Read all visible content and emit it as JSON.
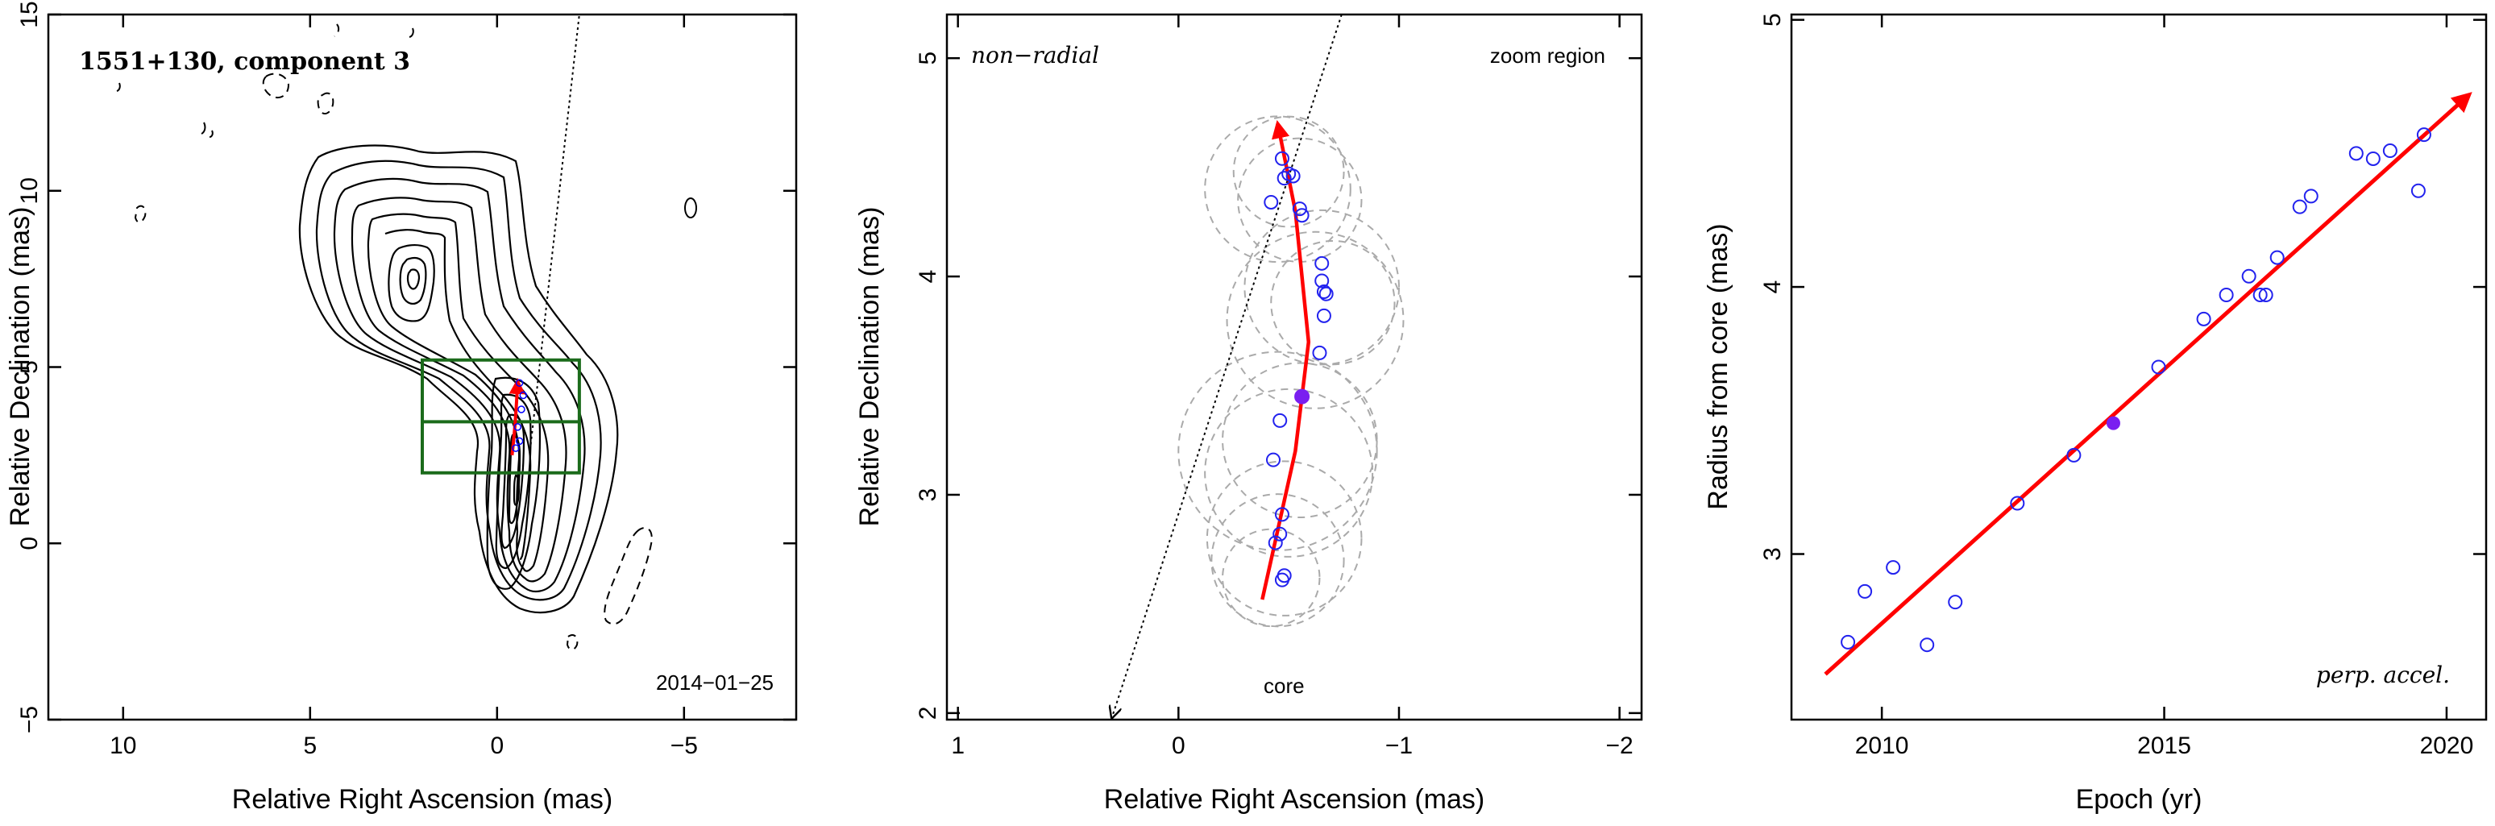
{
  "chart_data": [
    {
      "type": "scatter",
      "panel": "contour-map",
      "title": "1551+130, component 3",
      "date_label": "2014−01−25",
      "xlabel": "Relative Right Ascension (mas)",
      "ylabel": "Relative Declination (mas)",
      "xlim": [
        12,
        -8
      ],
      "ylim": [
        -5,
        15
      ],
      "x_ticks": [
        {
          "v": 10,
          "label": "10"
        },
        {
          "v": 5,
          "label": "5"
        },
        {
          "v": 0,
          "label": "0"
        },
        {
          "v": -5,
          "label": "−5"
        }
      ],
      "y_ticks": [
        {
          "v": -5,
          "label": "−5"
        },
        {
          "v": 0,
          "label": "0"
        },
        {
          "v": 5,
          "label": "5"
        },
        {
          "v": 10,
          "label": "10"
        },
        {
          "v": 15,
          "label": "15"
        }
      ],
      "zoom_box": {
        "x": [
          2.0,
          -2.2
        ],
        "y": [
          2.0,
          5.2
        ],
        "divider_y": 3.45
      },
      "jet_direction_line": [
        [
          -0.9,
          2.8
        ],
        [
          -2.2,
          15.0
        ]
      ],
      "path_arrow": [
        [
          -0.4,
          2.5
        ],
        [
          -0.5,
          3.4
        ],
        [
          -0.55,
          4.6
        ]
      ],
      "component_points": [
        [
          -0.6,
          4.55
        ],
        [
          -0.7,
          4.2
        ],
        [
          -0.65,
          3.8
        ],
        [
          -0.55,
          3.3
        ],
        [
          -0.6,
          2.9
        ],
        [
          -0.5,
          2.7
        ]
      ],
      "contour_color": "#000000",
      "box_color": "#1b6b1b",
      "arrow_color": "#ff0000",
      "point_color": "#0000ff"
    },
    {
      "type": "scatter",
      "panel": "zoom",
      "label_left": "non−radial",
      "label_right": "zoom region",
      "core_label": "core",
      "xlabel": "Relative Right Ascension (mas)",
      "ylabel": "Relative Declination (mas)",
      "xlim": [
        1.05,
        -2.1
      ],
      "ylim": [
        1.97,
        5.2
      ],
      "x_ticks": [
        {
          "v": 1,
          "label": "1"
        },
        {
          "v": 0,
          "label": "0"
        },
        {
          "v": -1,
          "label": "−1"
        },
        {
          "v": -2,
          "label": "−2"
        }
      ],
      "y_ticks": [
        {
          "v": 2,
          "label": "2"
        },
        {
          "v": 3,
          "label": "3"
        },
        {
          "v": 4,
          "label": "4"
        },
        {
          "v": 5,
          "label": "5"
        }
      ],
      "points": [
        [
          -0.47,
          4.54
        ],
        [
          -0.5,
          4.47
        ],
        [
          -0.48,
          4.45
        ],
        [
          -0.52,
          4.46
        ],
        [
          -0.42,
          4.34
        ],
        [
          -0.55,
          4.31
        ],
        [
          -0.56,
          4.28
        ],
        [
          -0.65,
          4.06
        ],
        [
          -0.65,
          3.98
        ],
        [
          -0.66,
          3.93
        ],
        [
          -0.67,
          3.92
        ],
        [
          -0.66,
          3.82
        ],
        [
          -0.64,
          3.65
        ],
        [
          -0.46,
          3.34
        ],
        [
          -0.43,
          3.16
        ],
        [
          -0.47,
          2.91
        ],
        [
          -0.46,
          2.82
        ],
        [
          -0.44,
          2.78
        ],
        [
          -0.48,
          2.63
        ],
        [
          -0.47,
          2.61
        ]
      ],
      "highlight_point": [
        -0.56,
        3.45
      ],
      "circles": [
        {
          "c": [
            -0.45,
            4.4
          ],
          "r": 0.33
        },
        {
          "c": [
            -0.55,
            4.35
          ],
          "r": 0.28
        },
        {
          "c": [
            -0.5,
            4.48
          ],
          "r": 0.25
        },
        {
          "c": [
            -0.65,
            3.95
          ],
          "r": 0.35
        },
        {
          "c": [
            -0.7,
            3.88
          ],
          "r": 0.28
        },
        {
          "c": [
            -0.62,
            3.8
          ],
          "r": 0.4
        },
        {
          "c": [
            -0.45,
            3.2
          ],
          "r": 0.45
        },
        {
          "c": [
            -0.5,
            3.1
          ],
          "r": 0.38
        },
        {
          "c": [
            -0.55,
            3.25
          ],
          "r": 0.35
        },
        {
          "c": [
            -0.45,
            2.7
          ],
          "r": 0.3
        },
        {
          "c": [
            -0.48,
            2.8
          ],
          "r": 0.35
        },
        {
          "c": [
            -0.42,
            2.62
          ],
          "r": 0.22
        }
      ],
      "radial_line": [
        [
          0.3,
          1.97
        ],
        [
          -0.74,
          5.2
        ]
      ],
      "arrow_path": [
        [
          -0.38,
          2.52
        ],
        [
          -0.53,
          3.2
        ],
        [
          -0.59,
          3.7
        ],
        [
          -0.53,
          4.3
        ],
        [
          -0.45,
          4.7
        ]
      ],
      "marker_color": "#2222ee",
      "highlight_color": "#7a1ff0",
      "circle_color": "#aaaaaa",
      "arrow_color": "#ff0000"
    },
    {
      "type": "scatter",
      "panel": "radius-vs-epoch",
      "label": "perp. accel.",
      "xlabel": "Epoch (yr)",
      "ylabel": "Radius from core (mas)",
      "xlim": [
        2008.4,
        2020.7
      ],
      "ylim": [
        2.38,
        5.02
      ],
      "x_ticks": [
        {
          "v": 2010,
          "label": "2010"
        },
        {
          "v": 2015,
          "label": "2015"
        },
        {
          "v": 2020,
          "label": "2020"
        }
      ],
      "y_ticks": [
        {
          "v": 3,
          "label": "3"
        },
        {
          "v": 4,
          "label": "4"
        },
        {
          "v": 5,
          "label": "5"
        }
      ],
      "points": [
        [
          2009.4,
          2.67
        ],
        [
          2009.7,
          2.86
        ],
        [
          2010.2,
          2.95
        ],
        [
          2010.8,
          2.66
        ],
        [
          2011.3,
          2.82
        ],
        [
          2012.4,
          3.19
        ],
        [
          2013.4,
          3.37
        ],
        [
          2014.9,
          3.7
        ],
        [
          2015.7,
          3.88
        ],
        [
          2016.1,
          3.97
        ],
        [
          2016.5,
          4.04
        ],
        [
          2016.7,
          3.97
        ],
        [
          2016.8,
          3.97
        ],
        [
          2017.0,
          4.11
        ],
        [
          2017.4,
          4.3
        ],
        [
          2017.6,
          4.34
        ],
        [
          2018.4,
          4.5
        ],
        [
          2018.7,
          4.48
        ],
        [
          2019.0,
          4.51
        ],
        [
          2019.5,
          4.36
        ],
        [
          2019.6,
          4.57
        ]
      ],
      "highlight_point": [
        2014.1,
        3.49
      ],
      "fit_arrow": [
        [
          2009.0,
          2.55
        ],
        [
          2020.4,
          4.72
        ]
      ],
      "marker_color": "#2222ee",
      "highlight_color": "#7a1ff0",
      "arrow_color": "#ff0000"
    }
  ]
}
